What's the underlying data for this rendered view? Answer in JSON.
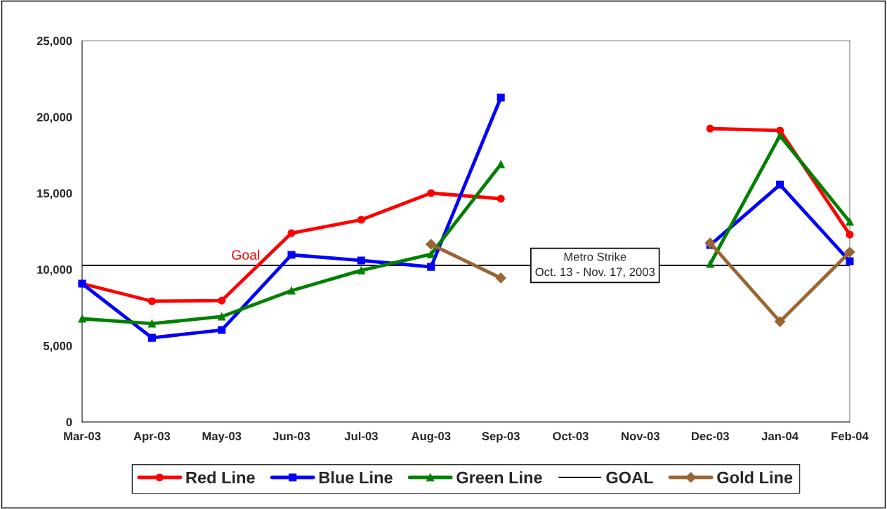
{
  "chart_data": {
    "type": "line",
    "categories": [
      "Mar-03",
      "Apr-03",
      "May-03",
      "Jun-03",
      "Jul-03",
      "Aug-03",
      "Sep-03",
      "Oct-03",
      "Nov-03",
      "Dec-03",
      "Jan-04",
      "Feb-04"
    ],
    "series": [
      {
        "name": "Red Line",
        "color": "#ff0000",
        "marker": "circle",
        "values": [
          9070,
          7920,
          7960,
          12380,
          13260,
          15010,
          14640,
          null,
          null,
          19240,
          19110,
          12290
        ]
      },
      {
        "name": "Blue Line",
        "color": "#0000ff",
        "marker": "square",
        "values": [
          9070,
          5520,
          6030,
          10960,
          10590,
          10170,
          21270,
          null,
          null,
          11600,
          15560,
          10540
        ]
      },
      {
        "name": "Green Line",
        "color": "#008000",
        "marker": "triangle",
        "values": [
          6770,
          6450,
          6910,
          8610,
          9940,
          11000,
          16900,
          null,
          null,
          10360,
          18780,
          13120
        ]
      },
      {
        "name": "Gold Line",
        "color": "#996633",
        "marker": "diamond",
        "values": [
          null,
          null,
          null,
          null,
          null,
          11650,
          9440,
          null,
          null,
          11740,
          6580,
          11140
        ]
      }
    ],
    "ylim": [
      0,
      25000
    ],
    "yticks": [
      {
        "value": 0,
        "label": "0"
      },
      {
        "value": 5000,
        "label": "5,000"
      },
      {
        "value": 10000,
        "label": "10,000"
      },
      {
        "value": 15000,
        "label": "15,000"
      },
      {
        "value": 20000,
        "label": "20,000"
      },
      {
        "value": 25000,
        "label": "25,000"
      }
    ],
    "annotations": [
      {
        "text": "Goal",
        "x": "Jun-03",
        "y": 10270
      },
      {
        "text": "Metro Strike\nOct. 13 - Nov. 17, 2003",
        "x": "Oct-03",
        "y": 10270
      }
    ],
    "ref_lines": [
      {
        "axis": "y",
        "value": 10270,
        "label": "GOAL",
        "color": "#000000"
      }
    ],
    "legend": "bottom",
    "grid": false
  }
}
